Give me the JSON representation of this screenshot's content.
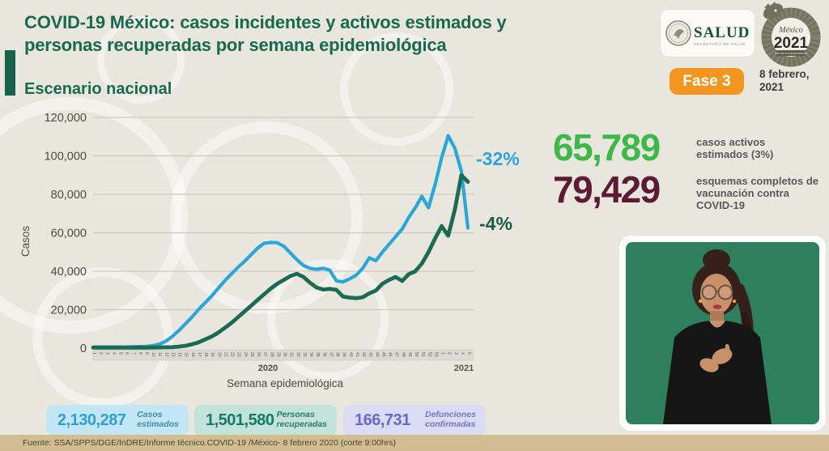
{
  "header": {
    "title": "COVID-19 México: casos incidentes y activos estimados y\npersonas recuperadas por semana epidemiológica",
    "subtitle": "Escenario nacional",
    "salud_logo": {
      "wordmark": "SALUD",
      "sub": "SECRETARÍA DE SALUD"
    },
    "mexico_logo": {
      "name": "México",
      "year": "2021",
      "sub": "Año de la Independencia"
    },
    "phase_badge": {
      "label": "Fase 3",
      "color": "#f3951e"
    },
    "date": "8 febrero,\n2021"
  },
  "chart_data": {
    "type": "line",
    "title": "",
    "xlabel": "Semana epidemiológica",
    "ylabel": "Casos",
    "ylim": [
      0,
      120000
    ],
    "grid": true,
    "legend": "none",
    "yticks": [
      0,
      20000,
      40000,
      60000,
      80000,
      100000,
      120000
    ],
    "ytick_labels": [
      "0",
      "20,000",
      "40,000",
      "60,000",
      "80,000",
      "100,000",
      "120,000"
    ],
    "x_year_labels": [
      "2020",
      "2021"
    ],
    "week_labels": [
      "1",
      "2",
      "3",
      "4",
      "5",
      "6",
      "7",
      "8",
      "9",
      "10",
      "11",
      "12",
      "13",
      "14",
      "15",
      "16",
      "17",
      "18",
      "19",
      "20",
      "21",
      "22",
      "23",
      "24",
      "25",
      "26",
      "27",
      "28",
      "29",
      "30",
      "31",
      "32",
      "33",
      "34",
      "35",
      "36",
      "37",
      "38",
      "39",
      "40",
      "41",
      "42",
      "43",
      "44",
      "45",
      "46",
      "47",
      "48",
      "49",
      "50",
      "51",
      "52",
      "53",
      "1",
      "2",
      "3",
      "4",
      "5"
    ],
    "series": [
      {
        "name": "Casos estimados",
        "color": "#2aa7d9",
        "values": [
          600,
          600,
          600,
          600,
          600,
          600,
          700,
          800,
          900,
          1200,
          2000,
          3500,
          6000,
          9000,
          12500,
          16000,
          20000,
          23500,
          27000,
          31000,
          35000,
          38500,
          42000,
          45000,
          48500,
          52000,
          54500,
          55000,
          54800,
          53000,
          49500,
          46000,
          43000,
          41500,
          41000,
          41500,
          40500,
          35000,
          34500,
          36000,
          38000,
          41500,
          47000,
          45500,
          50000,
          54000,
          58000,
          62000,
          68000,
          73000,
          79000,
          73000,
          85000,
          99000,
          110500,
          104000,
          92000,
          62500
        ]
      },
      {
        "name": "Personas recuperadas",
        "color": "#1b6a54",
        "values": [
          300,
          300,
          300,
          300,
          300,
          300,
          300,
          300,
          300,
          350,
          400,
          450,
          500,
          800,
          1200,
          2000,
          3000,
          4500,
          6000,
          8000,
          10500,
          13000,
          16000,
          19000,
          22000,
          25000,
          28000,
          31000,
          33500,
          35500,
          37500,
          38700,
          37000,
          34000,
          31500,
          30500,
          30800,
          30300,
          26800,
          26300,
          26000,
          26500,
          28500,
          30000,
          33500,
          35500,
          37000,
          35000,
          38500,
          40000,
          44000,
          50000,
          57000,
          63500,
          58500,
          72000,
          90000,
          86500
        ]
      }
    ],
    "annotations": [
      {
        "text": "-32%",
        "color": "#2aa7d9"
      },
      {
        "text": "-4%",
        "color": "#1b5b49"
      }
    ]
  },
  "stats_right": [
    {
      "value": "65,789",
      "label": "casos activos\nestimados (3%)",
      "color": "#3db94b"
    },
    {
      "value": "79,429",
      "label": "esquemas completos de\nvacunación contra\nCOVID-19",
      "color": "#5c1b34"
    }
  ],
  "stats_bottom": [
    {
      "value": "2,130,287",
      "label": "Casos\nestimados",
      "bg": "#c3e6f4",
      "value_color": "#2da0d6",
      "label_color": "#4189ad"
    },
    {
      "value": "1,501,580",
      "label": "Personas\nrecuperadas",
      "bg": "#c2e2da",
      "value_color": "#167a68",
      "label_color": "#2a7a6b"
    },
    {
      "value": "166,731",
      "label": "Defunciones\nconfirmadas",
      "bg": "#dadcf4",
      "value_color": "#6a68d0",
      "label_color": "#7473c9"
    }
  ],
  "footer": {
    "source": "Fuente: SSA/SPPS/DGE/InDRE/Informe técnico.COVID-19 /México- 8 febrero 2020 (corte 9:00hrs)"
  }
}
